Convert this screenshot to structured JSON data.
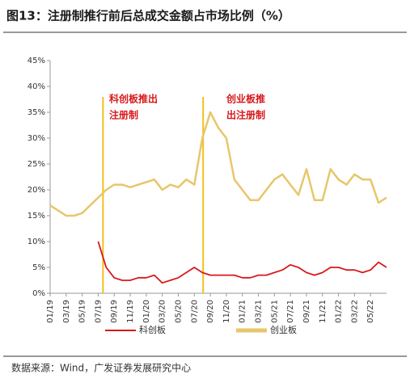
{
  "chart_data": {
    "type": "line",
    "title": "图13：注册制推行前后总成交金额占市场比例（%）",
    "source": "数据来源：Wind，广发证券发展研究中心",
    "categories": [
      "01/19",
      null,
      "03/19",
      null,
      "05/19",
      null,
      "07/19",
      null,
      "09/19",
      null,
      "11/19",
      null,
      "01/20",
      null,
      "03/20",
      null,
      "05/20",
      null,
      "07/20",
      null,
      "09/20",
      null,
      "11/20",
      null,
      "01/21",
      null,
      "03/21",
      null,
      "05/21",
      null,
      "07/21",
      null,
      "09/21",
      null,
      "11/21",
      null,
      "01/22",
      null,
      "03/22",
      null,
      "05/22",
      null,
      null
    ],
    "series": [
      {
        "name": "科创板",
        "color": "#d7191c",
        "values": [
          null,
          null,
          null,
          null,
          null,
          null,
          10,
          5,
          3,
          2.5,
          2.5,
          3,
          3,
          3.5,
          2,
          2.5,
          3,
          4,
          5,
          4,
          3.5,
          3.5,
          3.5,
          3.5,
          3,
          3,
          3.5,
          3.5,
          4,
          4.5,
          5.5,
          5,
          4,
          3.5,
          4,
          5,
          5,
          4.5,
          4.5,
          4,
          4.5,
          6,
          5
        ]
      },
      {
        "name": "创业板",
        "color": "#e8c66a",
        "values": [
          17,
          16,
          15,
          15,
          15.5,
          17,
          18.5,
          20,
          21,
          21,
          20.5,
          21,
          21.5,
          22,
          20,
          21,
          20.5,
          22,
          21,
          30,
          35,
          32,
          30,
          22,
          20,
          18,
          18,
          20,
          22,
          23,
          21,
          19,
          24,
          18,
          18,
          24,
          22,
          21,
          23,
          22,
          22,
          17.5,
          18.5
        ]
      }
    ],
    "annotations": [
      {
        "text": [
          "科创板推出",
          "注册制"
        ]
      },
      {
        "text": [
          "创业板推",
          "出注册制"
        ]
      }
    ],
    "ylim": [
      0,
      45
    ],
    "yticks": [
      {
        "value": 0,
        "label": "0%"
      },
      {
        "value": 5,
        "label": "5%"
      },
      {
        "value": 10,
        "label": "10%"
      },
      {
        "value": 15,
        "label": "15%"
      },
      {
        "value": 20,
        "label": "20%"
      },
      {
        "value": 25,
        "label": "25%"
      },
      {
        "value": 30,
        "label": "30%"
      },
      {
        "value": 35,
        "label": "35%"
      },
      {
        "value": 40,
        "label": "40%"
      },
      {
        "value": 45,
        "label": "45%"
      }
    ],
    "legend": "bottom"
  }
}
